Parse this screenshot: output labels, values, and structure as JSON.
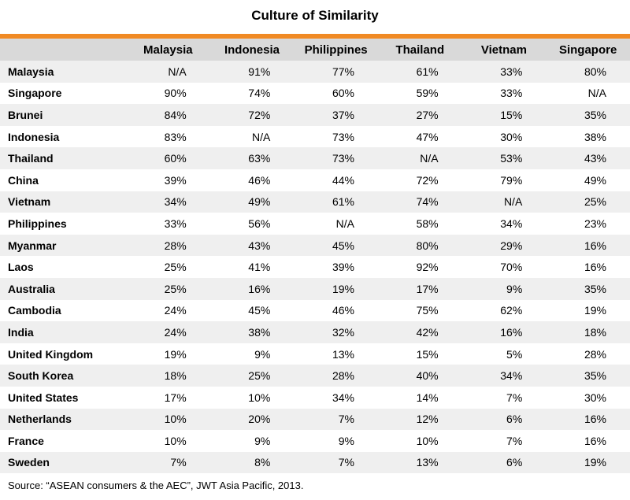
{
  "chart_data": {
    "type": "table",
    "title": "Culture of Similarity",
    "columns": [
      "Malaysia",
      "Indonesia",
      "Philippines",
      "Thailand",
      "Vietnam",
      "Singapore"
    ],
    "rows": [
      {
        "country": "Malaysia",
        "values": [
          "N/A",
          "91%",
          "77%",
          "61%",
          "33%",
          "80%"
        ]
      },
      {
        "country": "Singapore",
        "values": [
          "90%",
          "74%",
          "60%",
          "59%",
          "33%",
          "N/A"
        ]
      },
      {
        "country": "Brunei",
        "values": [
          "84%",
          "72%",
          "37%",
          "27%",
          "15%",
          "35%"
        ]
      },
      {
        "country": "Indonesia",
        "values": [
          "83%",
          "N/A",
          "73%",
          "47%",
          "30%",
          "38%"
        ]
      },
      {
        "country": "Thailand",
        "values": [
          "60%",
          "63%",
          "73%",
          "N/A",
          "53%",
          "43%"
        ]
      },
      {
        "country": "China",
        "values": [
          "39%",
          "46%",
          "44%",
          "72%",
          "79%",
          "49%"
        ]
      },
      {
        "country": "Vietnam",
        "values": [
          "34%",
          "49%",
          "61%",
          "74%",
          "N/A",
          "25%"
        ]
      },
      {
        "country": "Philippines",
        "values": [
          "33%",
          "56%",
          "N/A",
          "58%",
          "34%",
          "23%"
        ]
      },
      {
        "country": "Myanmar",
        "values": [
          "28%",
          "43%",
          "45%",
          "80%",
          "29%",
          "16%"
        ]
      },
      {
        "country": "Laos",
        "values": [
          "25%",
          "41%",
          "39%",
          "92%",
          "70%",
          "16%"
        ]
      },
      {
        "country": "Australia",
        "values": [
          "25%",
          "16%",
          "19%",
          "17%",
          "9%",
          "35%"
        ]
      },
      {
        "country": "Cambodia",
        "values": [
          "24%",
          "45%",
          "46%",
          "75%",
          "62%",
          "19%"
        ]
      },
      {
        "country": "India",
        "values": [
          "24%",
          "38%",
          "32%",
          "42%",
          "16%",
          "18%"
        ]
      },
      {
        "country": "United Kingdom",
        "values": [
          "19%",
          "9%",
          "13%",
          "15%",
          "5%",
          "28%"
        ]
      },
      {
        "country": "South Korea",
        "values": [
          "18%",
          "25%",
          "28%",
          "40%",
          "34%",
          "35%"
        ]
      },
      {
        "country": "United States",
        "values": [
          "17%",
          "10%",
          "34%",
          "14%",
          "7%",
          "30%"
        ]
      },
      {
        "country": "Netherlands",
        "values": [
          "10%",
          "20%",
          "7%",
          "12%",
          "6%",
          "16%"
        ]
      },
      {
        "country": "France",
        "values": [
          "10%",
          "9%",
          "9%",
          "10%",
          "7%",
          "16%"
        ]
      },
      {
        "country": "Sweden",
        "values": [
          "7%",
          "8%",
          "7%",
          "13%",
          "6%",
          "19%"
        ]
      }
    ],
    "source": "Source: “ASEAN consumers & the AEC”, JWT Asia Pacific, 2013."
  },
  "colors": {
    "accent_bar": "#f08a24",
    "header_bg": "#d9d9d9",
    "row_stripe": "#efefef"
  }
}
